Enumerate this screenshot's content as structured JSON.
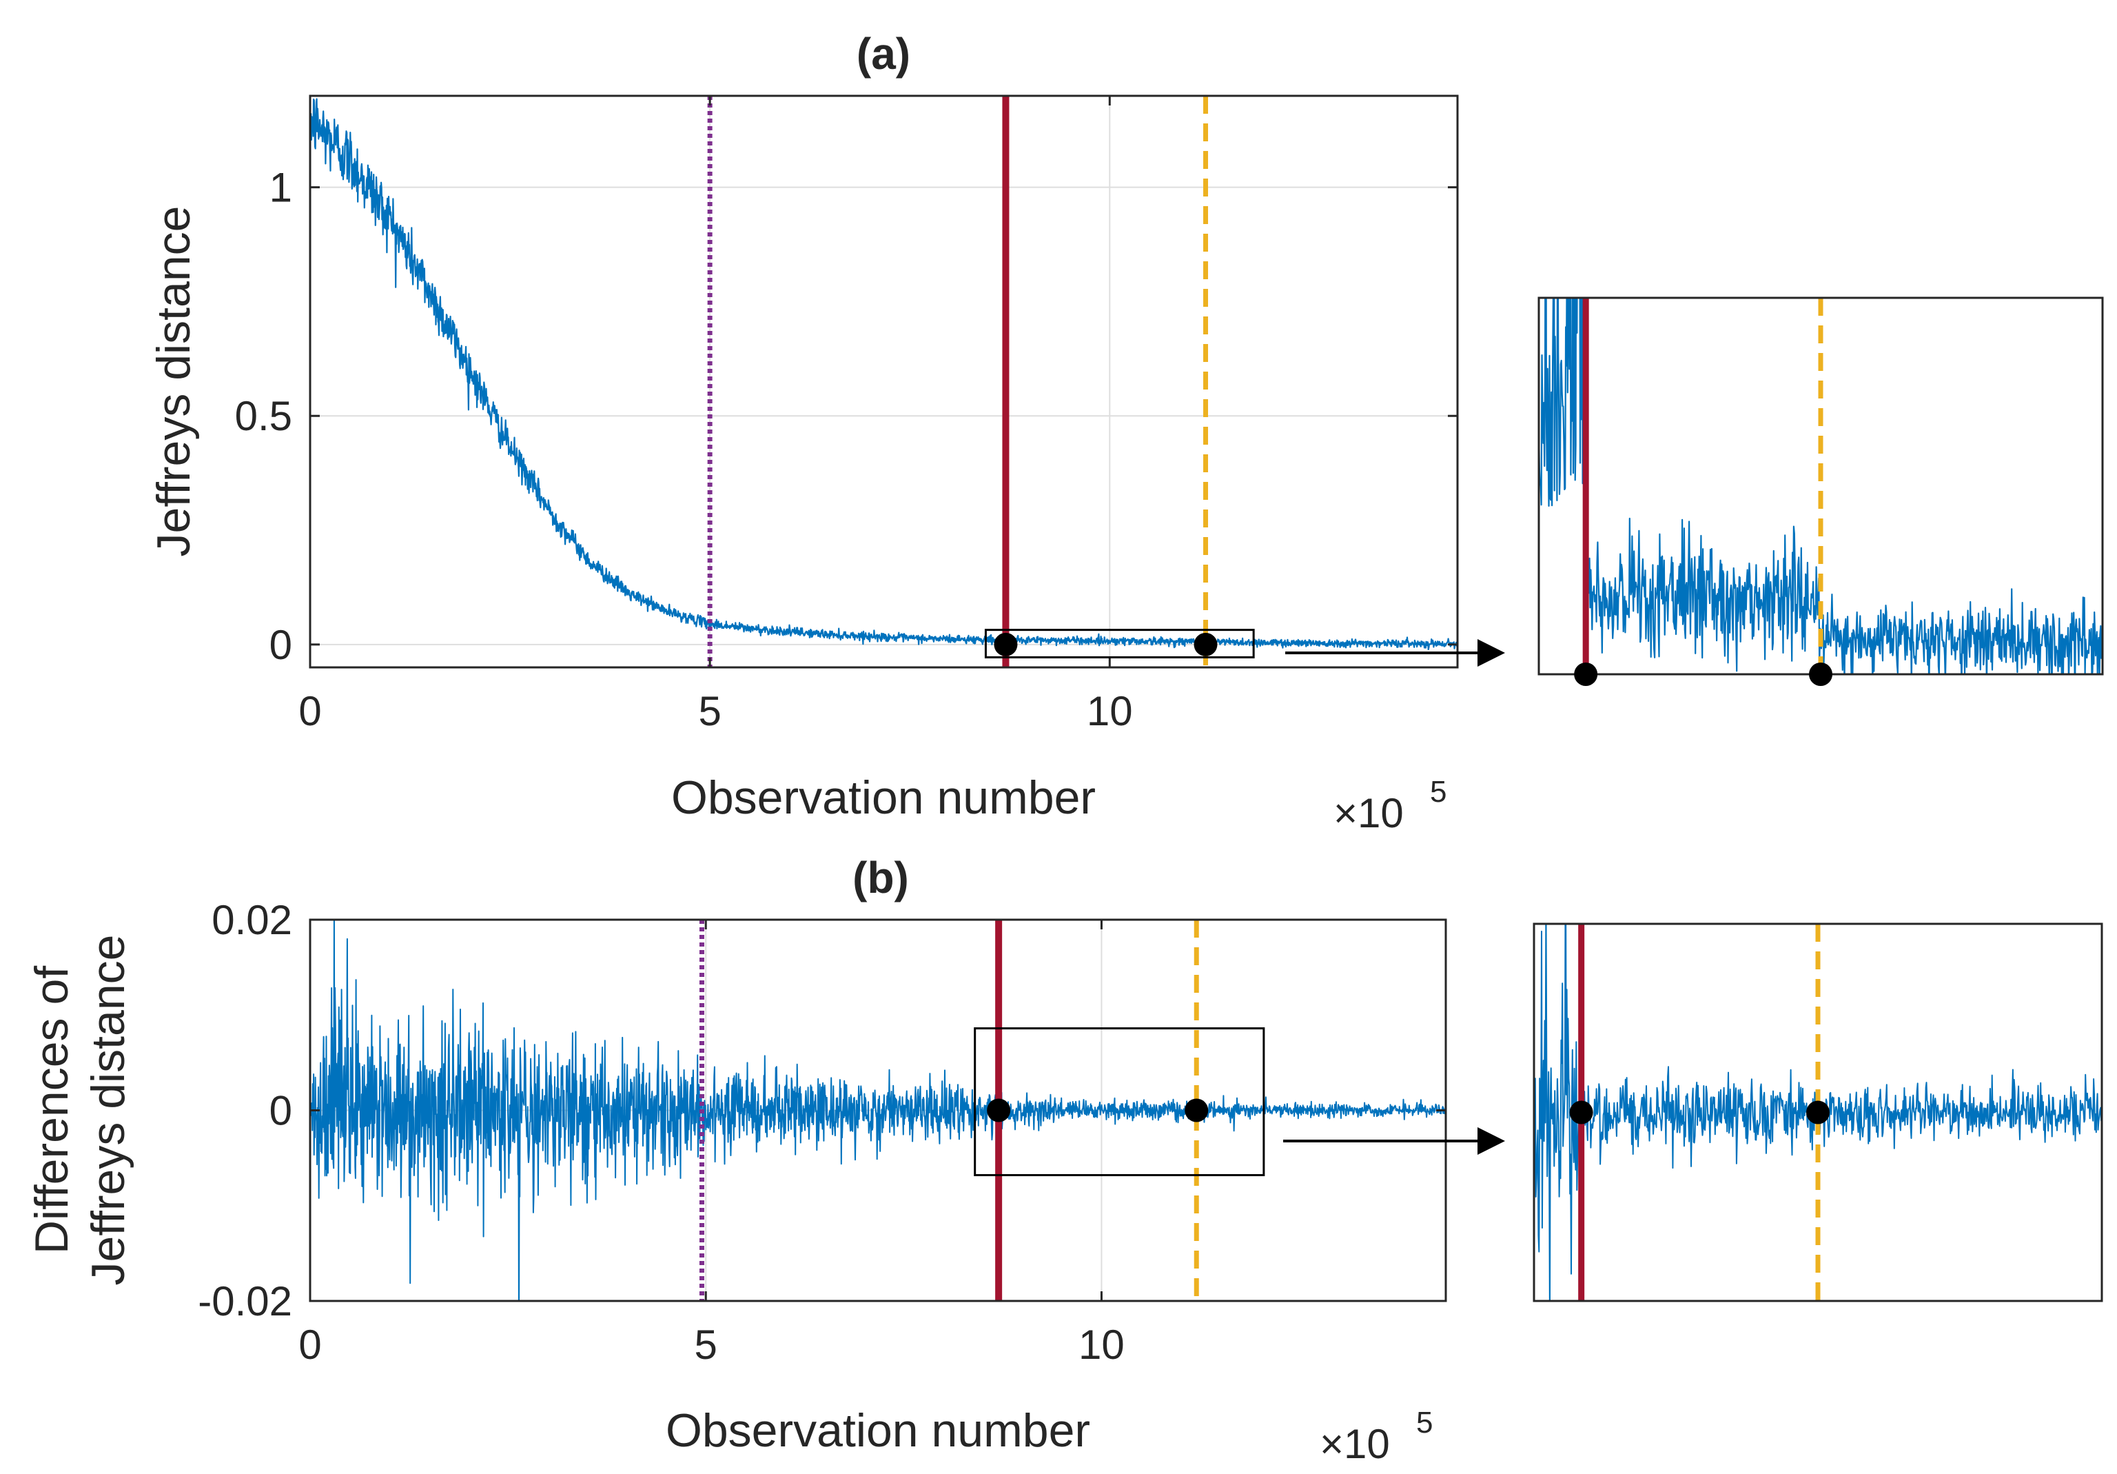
{
  "chart_data": [
    {
      "id": "a",
      "type": "line",
      "title": "(a)",
      "xlabel": "Observation number",
      "ylabel": "Jeffreys distance",
      "x_exponent_prefix": "×10",
      "x_exponent_power": "5",
      "xlim": [
        0,
        14.35
      ],
      "ylim": [
        -0.05,
        1.2
      ],
      "x_ticks": [
        {
          "value": 0,
          "label": "0"
        },
        {
          "value": 5,
          "label": "5"
        },
        {
          "value": 10,
          "label": "10"
        }
      ],
      "y_ticks": [
        {
          "value": 0,
          "label": "0"
        },
        {
          "value": 0.5,
          "label": "0.5"
        },
        {
          "value": 1,
          "label": "1"
        }
      ],
      "series": [
        {
          "name": "Jeffreys distance",
          "color": "#0072BD",
          "x": [
            0,
            0.5,
            1,
            1.5,
            2,
            2.5,
            3,
            3.5,
            4,
            4.5,
            5,
            5.5,
            6,
            6.5,
            7,
            7.5,
            8,
            8.7,
            9.5,
            10,
            11.2,
            12,
            13,
            14.35
          ],
          "y": [
            1.15,
            1.06,
            0.93,
            0.77,
            0.6,
            0.43,
            0.29,
            0.18,
            0.11,
            0.07,
            0.045,
            0.035,
            0.028,
            0.022,
            0.018,
            0.014,
            0.012,
            0.01,
            0.009,
            0.008,
            0.006,
            0.004,
            0.003,
            0.002
          ]
        }
      ],
      "vlines": [
        {
          "x": 5.0,
          "color": "#7E2F8E",
          "style": "dotted"
        },
        {
          "x": 8.7,
          "color": "#A2142F",
          "style": "solid"
        },
        {
          "x": 11.2,
          "color": "#EDB120",
          "style": "dashed"
        }
      ],
      "markers": [
        {
          "x": 8.7,
          "y": 0
        },
        {
          "x": 11.2,
          "y": 0
        }
      ],
      "zoom_box": {
        "x": [
          8.45,
          11.8
        ],
        "y": [
          -0.028,
          0.032
        ]
      }
    },
    {
      "id": "b",
      "type": "line",
      "title": "(b)",
      "xlabel": "Observation number",
      "ylabel_line1": "Differences of",
      "ylabel_line2": "Jeffreys distance",
      "x_exponent_prefix": "×10",
      "x_exponent_power": "5",
      "xlim": [
        0,
        14.35
      ],
      "ylim": [
        -0.02,
        0.02
      ],
      "x_ticks": [
        {
          "value": 0,
          "label": "0"
        },
        {
          "value": 5,
          "label": "5"
        },
        {
          "value": 10,
          "label": "10"
        }
      ],
      "y_ticks": [
        {
          "value": -0.02,
          "label": "-0.02"
        },
        {
          "value": 0,
          "label": "0"
        },
        {
          "value": 0.02,
          "label": "0.02"
        }
      ],
      "series": [
        {
          "name": "Differences of Jeffreys distance",
          "color": "#0072BD",
          "x": [
            0,
            1,
            2,
            3,
            4,
            5,
            6,
            7,
            8,
            8.7,
            10,
            11.2,
            12,
            13,
            14.35
          ],
          "amplitude": [
            0.0082,
            0.0088,
            0.0082,
            0.0068,
            0.0055,
            0.0042,
            0.0034,
            0.0029,
            0.0026,
            0.0012,
            0.0009,
            0.0008,
            0.0006,
            0.0006,
            0.0005
          ]
        }
      ],
      "vlines": [
        {
          "x": 4.95,
          "color": "#7E2F8E",
          "style": "dotted"
        },
        {
          "x": 8.7,
          "color": "#A2142F",
          "style": "solid"
        },
        {
          "x": 11.2,
          "color": "#EDB120",
          "style": "dashed"
        }
      ],
      "markers": [
        {
          "x": 8.7,
          "y": 0
        },
        {
          "x": 11.2,
          "y": 0
        }
      ],
      "zoom_box": {
        "x": [
          8.4,
          12.05
        ],
        "y": [
          -0.0068,
          0.0086
        ]
      }
    }
  ],
  "colors": {
    "line": "#0072BD",
    "purple": "#7E2F8E",
    "red": "#A2142F",
    "yellow": "#EDB120",
    "axis": "#262626",
    "grid": "#DEDEDE"
  }
}
